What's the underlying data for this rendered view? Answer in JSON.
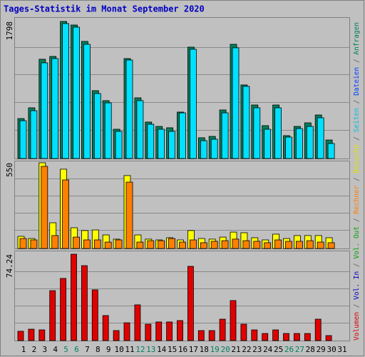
{
  "chart_data": {
    "type": "bar",
    "title": "Tages-Statistik im Monat September 2020",
    "title_color": "#0000c0",
    "categories": [
      "1",
      "2",
      "3",
      "4",
      "5",
      "6",
      "7",
      "8",
      "9",
      "10",
      "11",
      "12",
      "13",
      "14",
      "15",
      "16",
      "17",
      "18",
      "19",
      "20",
      "21",
      "22",
      "23",
      "24",
      "25",
      "26",
      "27",
      "28",
      "29",
      "30",
      "31"
    ],
    "category_colors": [
      "#000000",
      "#000000",
      "#000000",
      "#000000",
      "#008060",
      "#008060",
      "#000000",
      "#000000",
      "#000000",
      "#000000",
      "#000000",
      "#008060",
      "#008060",
      "#000000",
      "#000000",
      "#000000",
      "#000000",
      "#000000",
      "#008060",
      "#008060",
      "#000000",
      "#000000",
      "#000000",
      "#000000",
      "#000000",
      "#008060",
      "#008060",
      "#000000",
      "#000000",
      "#000000",
      "#000000"
    ],
    "panels": [
      {
        "ylim": [
          0,
          1798
        ],
        "yticks": [
          1798
        ],
        "series": [
          {
            "color": "#00805c",
            "values": [
              524,
              665,
              1302,
              1339,
              1798,
              1751,
              1536,
              890,
              759,
              384,
              1311,
              796,
              478,
              421,
              403,
              609,
              1461,
              272,
              290,
              637,
              1498,
              965,
              702,
              431,
              702,
              300,
              421,
              468,
              571,
              243,
              0
            ]
          },
          {
            "color": "#00e0ff",
            "values": [
              496,
              627,
              1255,
              1311,
              1770,
              1723,
              1498,
              852,
              730,
              356,
              1292,
              759,
              449,
              384,
              356,
              599,
              1433,
              234,
              253,
              599,
              1452,
              946,
              665,
              384,
              665,
              281,
              393,
              421,
              534,
              197,
              0
            ]
          }
        ]
      },
      {
        "ylim": [
          0,
          550
        ],
        "yticks": [
          550
        ],
        "series": [
          {
            "color": "#ffff00",
            "values": [
              78,
              64,
              550,
              165,
              509,
              133,
              115,
              119,
              87,
              60,
              468,
              87,
              60,
              55,
              69,
              55,
              115,
              64,
              60,
              73,
              105,
              101,
              69,
              55,
              92,
              64,
              83,
              83,
              83,
              69,
              0
            ]
          },
          {
            "color": "#ff8000",
            "values": [
              64,
              55,
              527,
              83,
              440,
              73,
              55,
              55,
              41,
              55,
              426,
              41,
              50,
              50,
              64,
              41,
              55,
              37,
              46,
              50,
              60,
              50,
              46,
              37,
              55,
              46,
              46,
              50,
              41,
              37,
              0
            ]
          }
        ]
      },
      {
        "ylim": [
          0,
          74.24
        ],
        "yticks": [
          74.24
        ],
        "series": [
          {
            "color": "#e00000",
            "values": [
              8.0,
              9.8,
              9.2,
              42.9,
              53.4,
              74.24,
              64.4,
              43.6,
              21.5,
              8.6,
              15.3,
              30.7,
              14.1,
              16.0,
              16.0,
              17.2,
              63.8,
              8.6,
              8.6,
              18.4,
              34.4,
              14.1,
              9.2,
              6.1,
              9.2,
              6.1,
              6.1,
              6.1,
              18.4,
              4.3,
              0
            ]
          }
        ]
      }
    ],
    "legend_separator": "/",
    "legend": [
      {
        "name": "Volumen",
        "color": "#e00000"
      },
      {
        "name": "Vol. In",
        "color": "#0000c0"
      },
      {
        "name": "Vol. Out",
        "color": "#00a000"
      },
      {
        "name": "Rechner",
        "color": "#ff8000"
      },
      {
        "name": "Besuche",
        "color": "#e0e000"
      },
      {
        "name": "Seiten",
        "color": "#00c0e0"
      },
      {
        "name": "Dateien",
        "color": "#0040ff"
      },
      {
        "name": "Anfragen",
        "color": "#00805c"
      }
    ]
  }
}
